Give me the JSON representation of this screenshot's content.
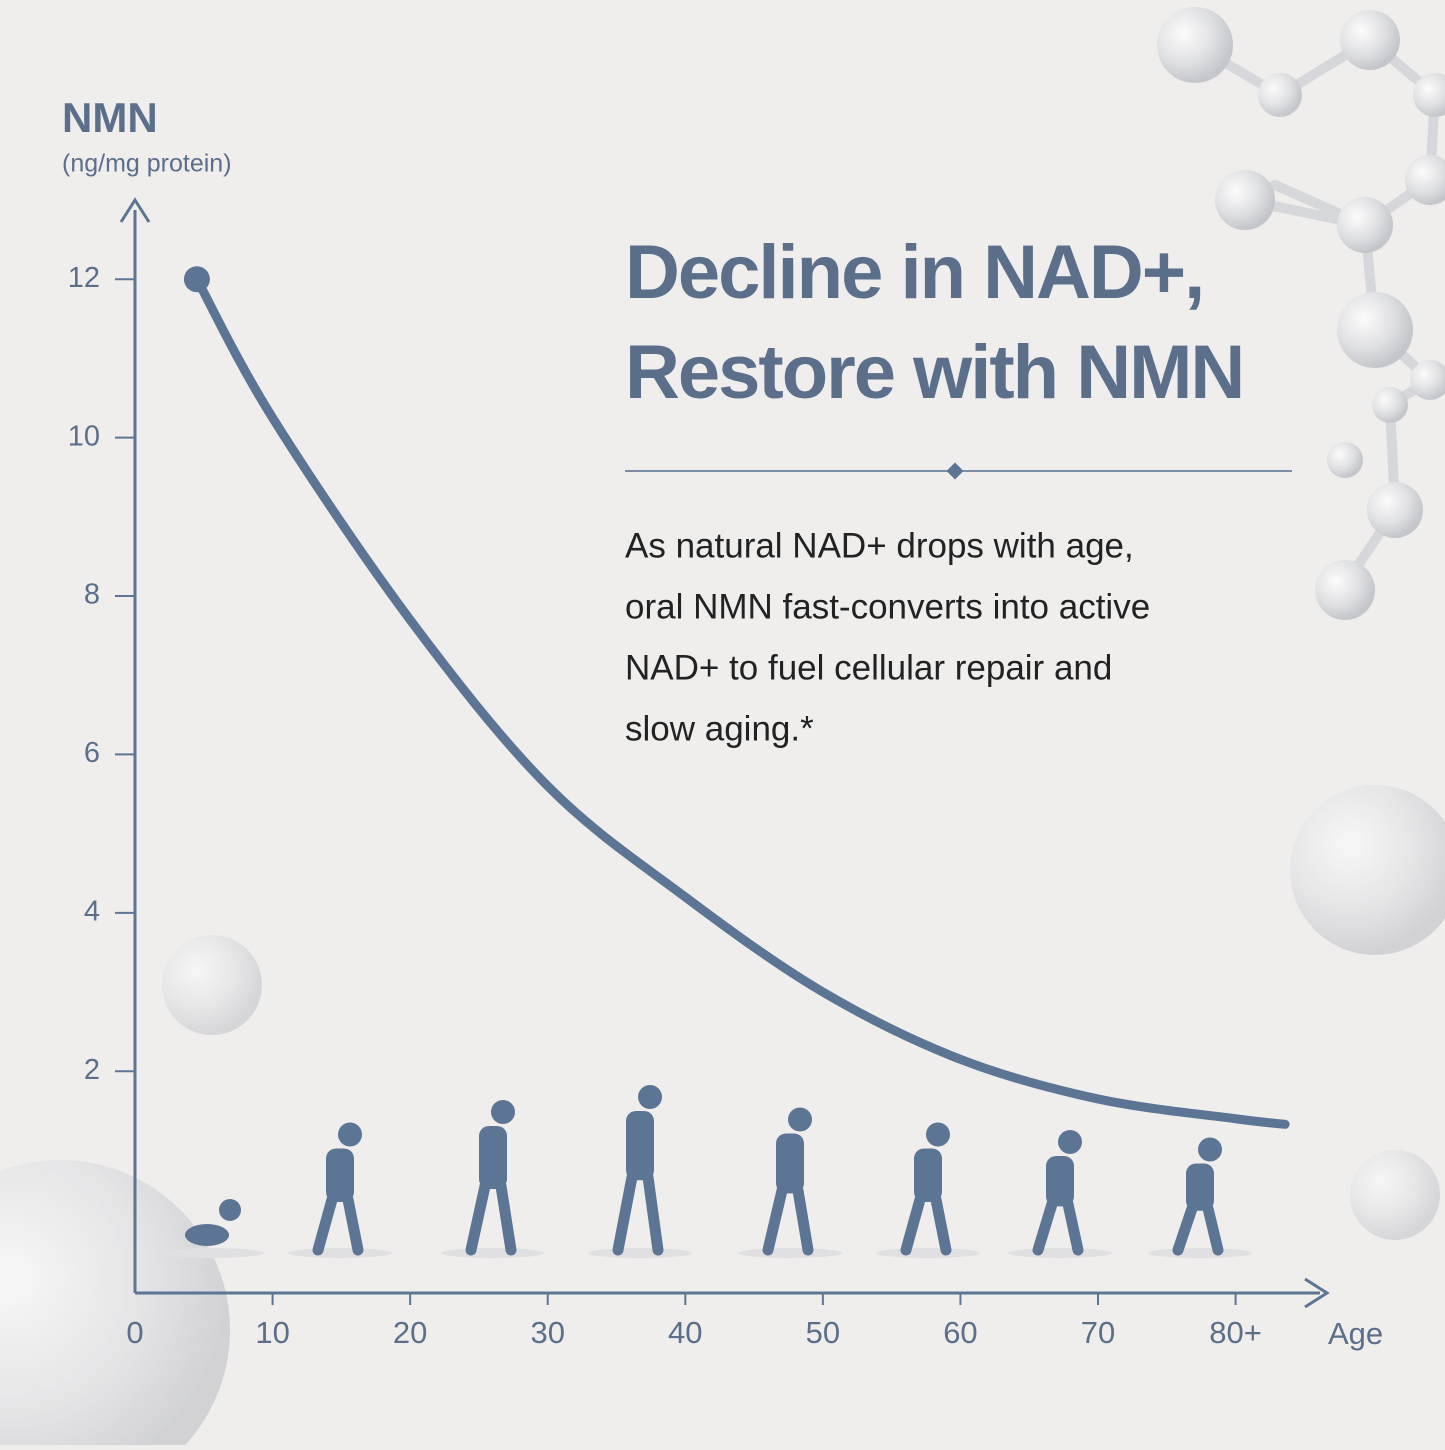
{
  "chart_data": {
    "type": "line",
    "title": [
      "Decline in NAD+,",
      "Restore with NMN"
    ],
    "description": [
      "As natural NAD+ drops with age,",
      "oral NMN fast-converts into active",
      "NAD+ to fuel cellular repair and",
      "slow aging.*"
    ],
    "y_label": "NMN",
    "y_unit": "(ng/mg protein)",
    "x_label": "Age",
    "x": [
      4.5,
      10,
      20,
      30,
      40,
      50,
      60,
      70,
      80,
      83.6
    ],
    "series": [
      {
        "name": "NMN",
        "color": "#5d7594",
        "values": [
          12,
          10.25,
          7.7,
          5.6,
          4.2,
          3.0,
          2.15,
          1.65,
          1.4,
          1.33
        ]
      }
    ],
    "xlim": [
      0,
      86.5
    ],
    "xticks": [
      0,
      10,
      20,
      30,
      40,
      50,
      60,
      70,
      {
        "value": 80,
        "label": "80+"
      }
    ],
    "ylim": [
      -0.8,
      13
    ],
    "yticks": [
      2,
      4,
      6,
      8,
      10,
      12
    ],
    "grid": false
  }
}
